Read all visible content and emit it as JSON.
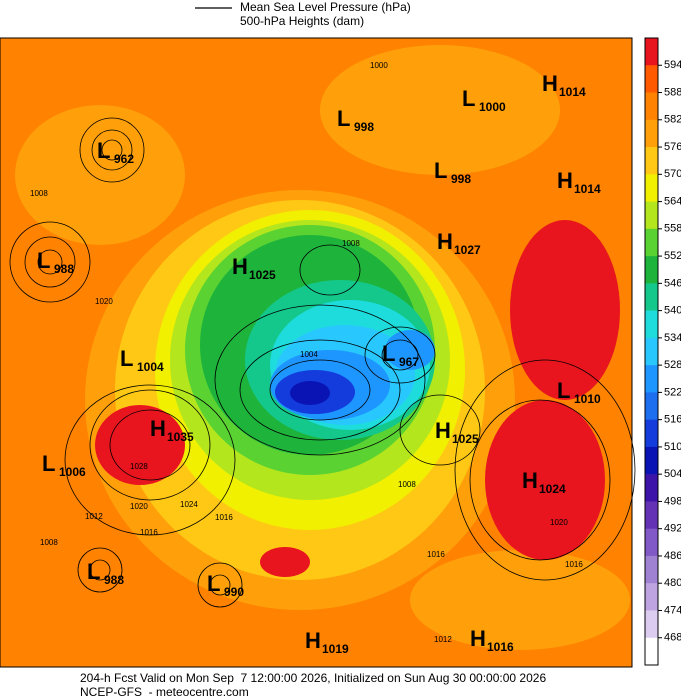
{
  "legend": {
    "line_label": "Mean Sea Level Pressure (hPa)",
    "fill_label": "500-hPa Heights (dam)"
  },
  "colorbar": {
    "ticks": [
      594,
      588,
      582,
      576,
      570,
      564,
      558,
      552,
      546,
      540,
      534,
      528,
      522,
      516,
      510,
      504,
      498,
      492,
      486,
      480,
      474,
      468
    ],
    "colors": [
      "#e8141e",
      "#ff5a00",
      "#ff8200",
      "#ffa00a",
      "#ffc814",
      "#f0f000",
      "#b4e61e",
      "#5ad232",
      "#1eb43c",
      "#14c88c",
      "#1edcdc",
      "#28c8ff",
      "#1e96ff",
      "#1e6ef0",
      "#143cdc",
      "#0a14b4",
      "#3c14aa",
      "#6432b4",
      "#825ac8",
      "#a082d2",
      "#bea5e1",
      "#dccdf0",
      "#ffffff"
    ]
  },
  "centers": [
    {
      "type": "L",
      "value": "1000"
    },
    {
      "type": "H",
      "value": "1014"
    },
    {
      "type": "L",
      "value": "998"
    },
    {
      "type": "H",
      "value": "1014"
    },
    {
      "type": "L",
      "value": "998"
    },
    {
      "type": "L",
      "value": "962"
    },
    {
      "type": "H",
      "value": "1027"
    },
    {
      "type": "L",
      "value": "988"
    },
    {
      "type": "H",
      "value": "1025"
    },
    {
      "type": "L",
      "value": "1004"
    },
    {
      "type": "L",
      "value": "967"
    },
    {
      "type": "L",
      "value": "1010"
    },
    {
      "type": "H",
      "value": "1035"
    },
    {
      "type": "H",
      "value": "1025"
    },
    {
      "type": "L",
      "value": "1006"
    },
    {
      "type": "H",
      "value": "1024"
    },
    {
      "type": "L",
      "value": "988"
    },
    {
      "type": "L",
      "value": "990"
    },
    {
      "type": "H",
      "value": "1019"
    },
    {
      "type": "H",
      "value": "1016"
    }
  ],
  "isobar_labels": [
    "1000",
    "1008",
    "1008",
    "1020",
    "1004",
    "1028",
    "1020",
    "1024",
    "1016",
    "1016",
    "1012",
    "1008",
    "1008",
    "1020",
    "1016",
    "1016",
    "1012"
  ],
  "footer": {
    "line1": "204-h Fcst Valid on Mon Sep  7 12:00:00 2026, Initialized on Sun Aug 30 00:00:00 2026",
    "line2": "NCEP-GFS  - meteocentre.com"
  }
}
